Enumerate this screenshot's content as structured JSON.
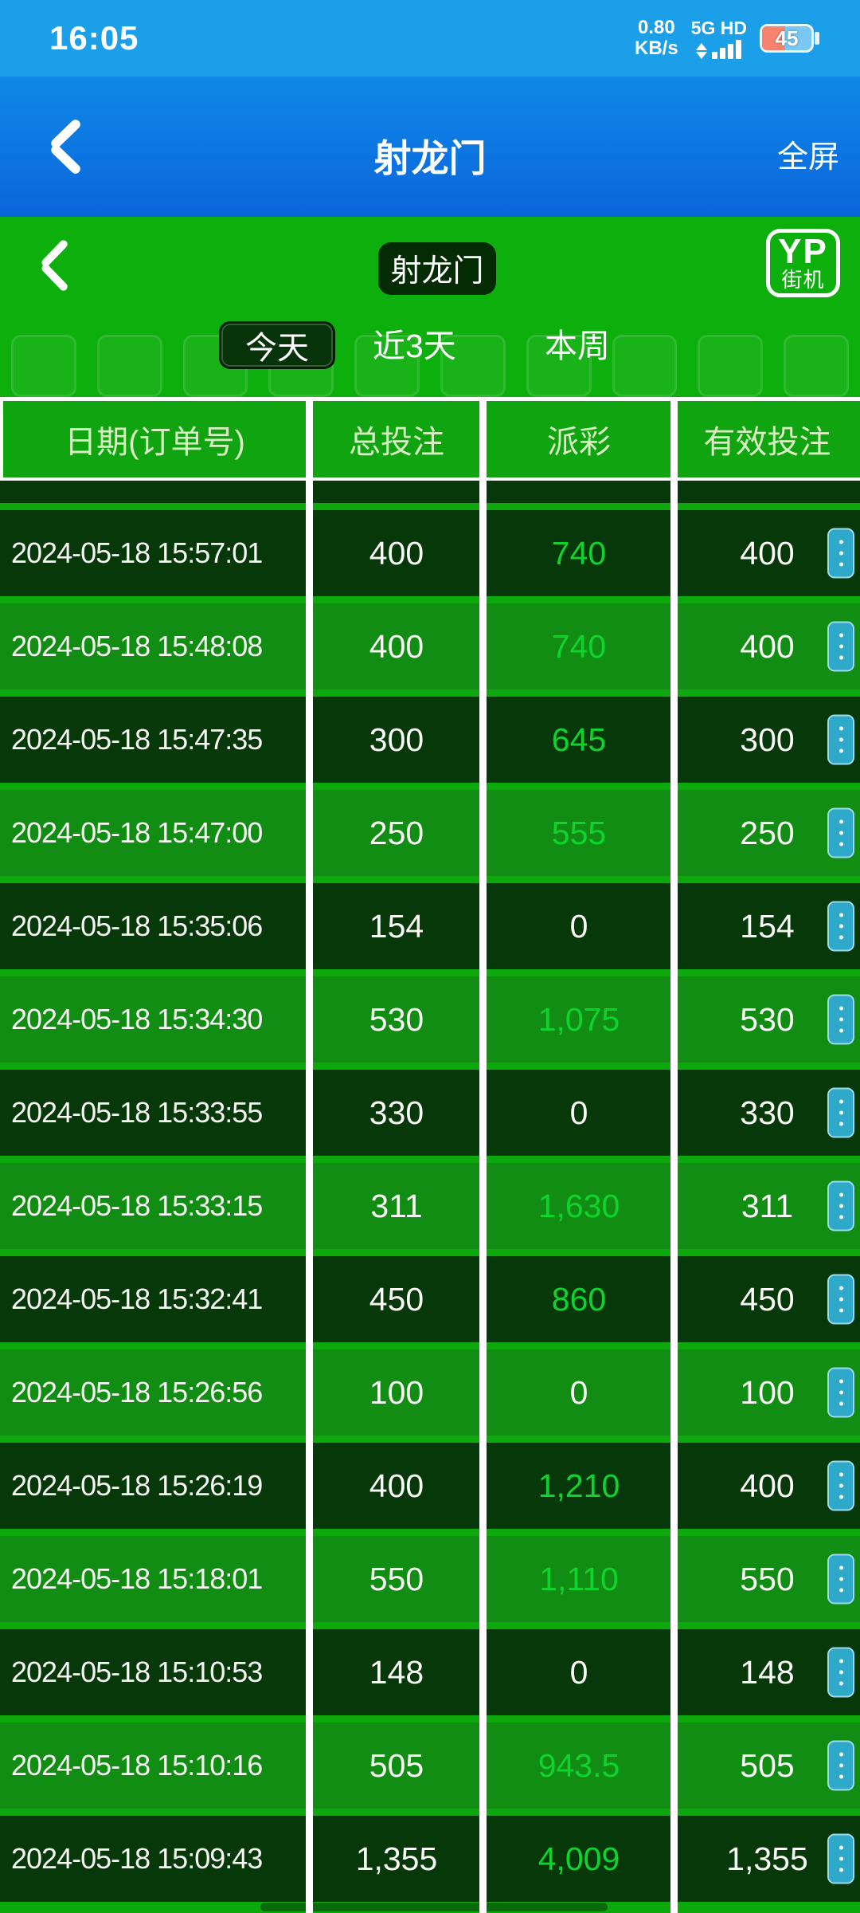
{
  "status_bar": {
    "time": "16:05",
    "network_speed_value": "0.80",
    "network_speed_unit": "KB/s",
    "network_type": "5G HD",
    "battery_percent": "45"
  },
  "app_bar": {
    "title": "射龙门",
    "fullscreen_label": "全屏"
  },
  "game_header": {
    "badge_label": "射龙门",
    "logo_line1": "YP",
    "logo_line2": "街机"
  },
  "tabs": [
    {
      "label": "今天",
      "selected": true
    },
    {
      "label": "近3天",
      "selected": false
    },
    {
      "label": "本周",
      "selected": false
    }
  ],
  "table": {
    "columns": [
      "日期(订单号)",
      "总投注",
      "派彩",
      "有效投注"
    ],
    "rows": [
      {
        "datetime": "2024-05-18 15:57:01",
        "total_bet": "400",
        "payout": "740",
        "valid_bet": "400",
        "payout_win": true,
        "tone": "dark"
      },
      {
        "datetime": "2024-05-18 15:48:08",
        "total_bet": "400",
        "payout": "740",
        "valid_bet": "400",
        "payout_win": true,
        "tone": "light"
      },
      {
        "datetime": "2024-05-18 15:47:35",
        "total_bet": "300",
        "payout": "645",
        "valid_bet": "300",
        "payout_win": true,
        "tone": "dark"
      },
      {
        "datetime": "2024-05-18 15:47:00",
        "total_bet": "250",
        "payout": "555",
        "valid_bet": "250",
        "payout_win": true,
        "tone": "light"
      },
      {
        "datetime": "2024-05-18 15:35:06",
        "total_bet": "154",
        "payout": "0",
        "valid_bet": "154",
        "payout_win": false,
        "tone": "dark"
      },
      {
        "datetime": "2024-05-18 15:34:30",
        "total_bet": "530",
        "payout": "1,075",
        "valid_bet": "530",
        "payout_win": true,
        "tone": "light"
      },
      {
        "datetime": "2024-05-18 15:33:55",
        "total_bet": "330",
        "payout": "0",
        "valid_bet": "330",
        "payout_win": false,
        "tone": "dark"
      },
      {
        "datetime": "2024-05-18 15:33:15",
        "total_bet": "311",
        "payout": "1,630",
        "valid_bet": "311",
        "payout_win": true,
        "tone": "light"
      },
      {
        "datetime": "2024-05-18 15:32:41",
        "total_bet": "450",
        "payout": "860",
        "valid_bet": "450",
        "payout_win": true,
        "tone": "dark"
      },
      {
        "datetime": "2024-05-18 15:26:56",
        "total_bet": "100",
        "payout": "0",
        "valid_bet": "100",
        "payout_win": false,
        "tone": "light"
      },
      {
        "datetime": "2024-05-18 15:26:19",
        "total_bet": "400",
        "payout": "1,210",
        "valid_bet": "400",
        "payout_win": true,
        "tone": "dark"
      },
      {
        "datetime": "2024-05-18 15:18:01",
        "total_bet": "550",
        "payout": "1,110",
        "valid_bet": "550",
        "payout_win": true,
        "tone": "light"
      },
      {
        "datetime": "2024-05-18 15:10:53",
        "total_bet": "148",
        "payout": "0",
        "valid_bet": "148",
        "payout_win": false,
        "tone": "dark"
      },
      {
        "datetime": "2024-05-18 15:10:16",
        "total_bet": "505",
        "payout": "943.5",
        "valid_bet": "505",
        "payout_win": true,
        "tone": "light"
      },
      {
        "datetime": "2024-05-18 15:09:43",
        "total_bet": "1,355",
        "payout": "4,009",
        "valid_bet": "1,355",
        "payout_win": true,
        "tone": "dark"
      }
    ]
  },
  "colors": {
    "status_bar_blue": "#1A9FE8",
    "app_bar_gradient_top": "#0F88E8",
    "app_bar_gradient_bottom": "#0A66DB",
    "page_green": "#0DAF0D",
    "table_header_green": "#10A410",
    "row_dark_green": "#07380A",
    "row_light_green": "#108D12",
    "win_amount_green": "#0FD42F",
    "header_text": "#D8EFC4",
    "action_button_blue": "#2FA9C9",
    "battery_fill": "#F5836F"
  }
}
